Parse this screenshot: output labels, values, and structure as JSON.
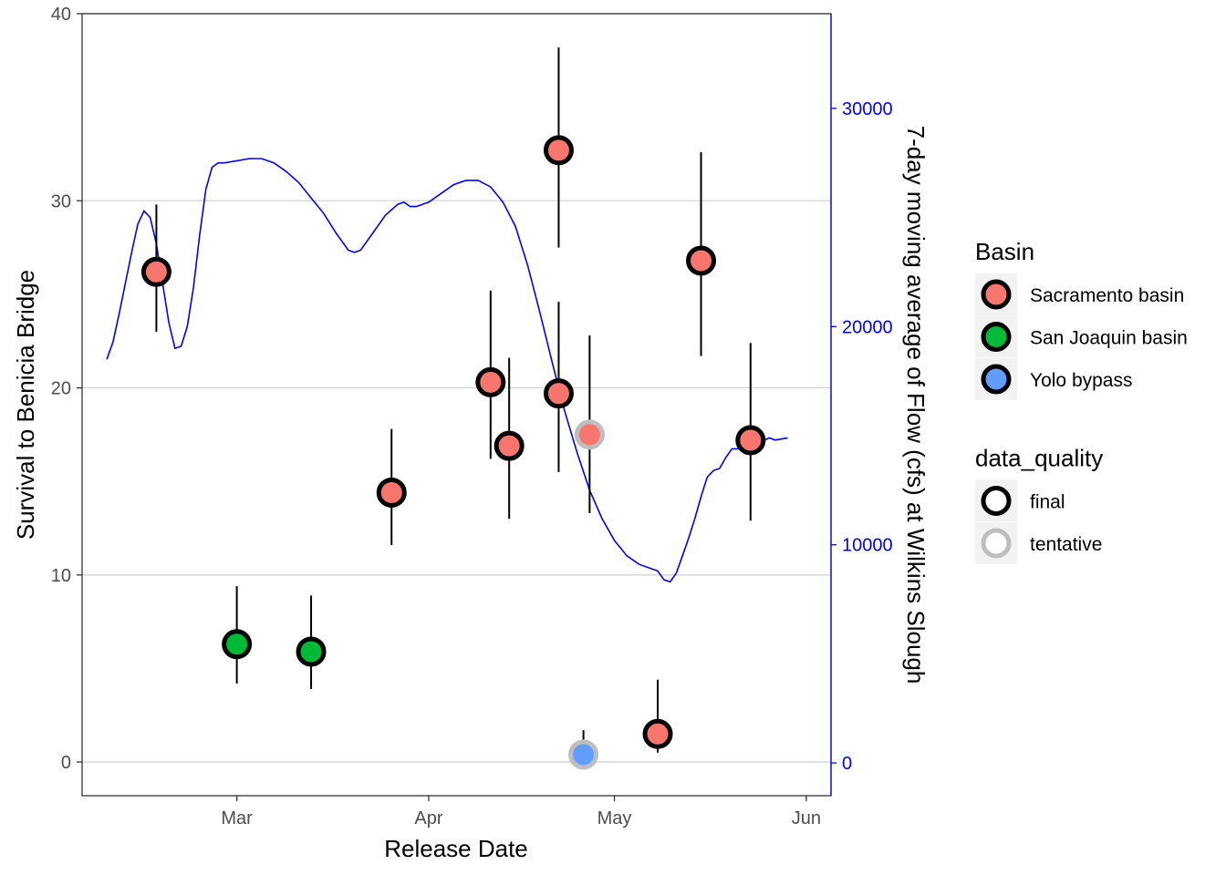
{
  "chart_data": {
    "type": "scatter",
    "xlabel": "Release Date",
    "ylabel": "Survival to Benicia Bridge",
    "y2label": "7-day moving average of Flow (cfs) at Wilkins Slough",
    "x_ticks": [
      {
        "date": "2022-03-01",
        "label": "Mar"
      },
      {
        "date": "2022-04-01",
        "label": "Apr"
      },
      {
        "date": "2022-05-01",
        "label": "May"
      },
      {
        "date": "2022-06-01",
        "label": "Jun"
      }
    ],
    "ylim": [
      -1.8,
      40
    ],
    "y_ticks": [
      0,
      10,
      20,
      30,
      40
    ],
    "y2lim": [
      -1500,
      34340
    ],
    "y2_ticks": [
      0,
      10000,
      20000,
      30000
    ],
    "xlim": [
      "2022-02-04",
      "2022-06-05"
    ],
    "grid": "horizontal major lines",
    "legend_position": "right",
    "colors": {
      "flow_line": "#0000ff",
      "sacramento": "#f8766d",
      "san_joaquin": "#00ba38",
      "yolo": "#619cff",
      "final_outline": "#000000",
      "tentative_outline": "#bebebe",
      "grid": "#d3d3d3",
      "error_bar": "#000000"
    },
    "legends": [
      {
        "title": "Basin",
        "entries": [
          {
            "label": "Sacramento basin",
            "fill": "#f8766d",
            "stroke": "#000000"
          },
          {
            "label": "San Joaquin basin",
            "fill": "#00ba38",
            "stroke": "#000000"
          },
          {
            "label": "Yolo bypass",
            "fill": "#619cff",
            "stroke": "#000000"
          }
        ]
      },
      {
        "title": "data_quality",
        "entries": [
          {
            "label": "final",
            "fill": "#ffffff",
            "stroke": "#000000"
          },
          {
            "label": "tentative",
            "fill": "#ffffff",
            "stroke": "#bebebe"
          }
        ]
      }
    ],
    "points": [
      {
        "date": "2022-02-16",
        "y": 26.2,
        "ymin": 23.0,
        "ymax": 29.8,
        "basin": "Sacramento basin",
        "data_quality": "final"
      },
      {
        "date": "2022-03-01",
        "y": 6.3,
        "ymin": 4.2,
        "ymax": 9.4,
        "basin": "San Joaquin basin",
        "data_quality": "final"
      },
      {
        "date": "2022-03-13",
        "y": 5.9,
        "ymin": 3.9,
        "ymax": 8.9,
        "basin": "San Joaquin basin",
        "data_quality": "final"
      },
      {
        "date": "2022-03-26",
        "y": 14.4,
        "ymin": 11.6,
        "ymax": 17.8,
        "basin": "Sacramento basin",
        "data_quality": "final"
      },
      {
        "date": "2022-04-11",
        "y": 20.3,
        "ymin": 16.2,
        "ymax": 25.2,
        "basin": "Sacramento basin",
        "data_quality": "final"
      },
      {
        "date": "2022-04-14",
        "y": 16.9,
        "ymin": 13.0,
        "ymax": 21.6,
        "basin": "Sacramento basin",
        "data_quality": "final"
      },
      {
        "date": "2022-04-22",
        "y": 32.7,
        "ymin": 27.5,
        "ymax": 38.2,
        "basin": "Sacramento basin",
        "data_quality": "final"
      },
      {
        "date": "2022-04-22",
        "y": 19.7,
        "ymin": 15.5,
        "ymax": 24.6,
        "basin": "Sacramento basin",
        "data_quality": "final"
      },
      {
        "date": "2022-04-27",
        "y": 17.5,
        "ymin": 13.3,
        "ymax": 22.8,
        "basin": "Sacramento basin",
        "data_quality": "tentative"
      },
      {
        "date": "2022-04-26",
        "y": 0.4,
        "ymin": 0.1,
        "ymax": 1.7,
        "basin": "Yolo bypass",
        "data_quality": "tentative"
      },
      {
        "date": "2022-05-08",
        "y": 1.5,
        "ymin": 0.5,
        "ymax": 4.4,
        "basin": "Sacramento basin",
        "data_quality": "final"
      },
      {
        "date": "2022-05-15",
        "y": 26.8,
        "ymin": 21.7,
        "ymax": 32.6,
        "basin": "Sacramento basin",
        "data_quality": "final"
      },
      {
        "date": "2022-05-23",
        "y": 17.2,
        "ymin": 12.9,
        "ymax": 22.4,
        "basin": "Sacramento basin",
        "data_quality": "final"
      }
    ],
    "flow_series": {
      "name": "7-day moving average of Flow (cfs) at Wilkins Slough",
      "points": [
        [
          "2022-02-08",
          18500
        ],
        [
          "2022-02-09",
          19300
        ],
        [
          "2022-02-10",
          20600
        ],
        [
          "2022-02-11",
          22000
        ],
        [
          "2022-02-12",
          23400
        ],
        [
          "2022-02-13",
          24700
        ],
        [
          "2022-02-14",
          25300
        ],
        [
          "2022-02-15",
          25000
        ],
        [
          "2022-02-16",
          23800
        ],
        [
          "2022-02-17",
          22000
        ],
        [
          "2022-02-18",
          20200
        ],
        [
          "2022-02-19",
          19000
        ],
        [
          "2022-02-20",
          19100
        ],
        [
          "2022-02-21",
          20000
        ],
        [
          "2022-02-22",
          21800
        ],
        [
          "2022-02-23",
          24200
        ],
        [
          "2022-02-24",
          26300
        ],
        [
          "2022-02-25",
          27300
        ],
        [
          "2022-02-26",
          27500
        ],
        [
          "2022-02-27",
          27500
        ],
        [
          "2022-03-01",
          27600
        ],
        [
          "2022-03-03",
          27700
        ],
        [
          "2022-03-05",
          27700
        ],
        [
          "2022-03-07",
          27500
        ],
        [
          "2022-03-09",
          27100
        ],
        [
          "2022-03-11",
          26600
        ],
        [
          "2022-03-13",
          25900
        ],
        [
          "2022-03-15",
          25200
        ],
        [
          "2022-03-17",
          24300
        ],
        [
          "2022-03-19",
          23500
        ],
        [
          "2022-03-20",
          23400
        ],
        [
          "2022-03-21",
          23500
        ],
        [
          "2022-03-23",
          24300
        ],
        [
          "2022-03-25",
          25100
        ],
        [
          "2022-03-27",
          25600
        ],
        [
          "2022-03-28",
          25700
        ],
        [
          "2022-03-29",
          25500
        ],
        [
          "2022-03-30",
          25500
        ],
        [
          "2022-04-01",
          25700
        ],
        [
          "2022-04-03",
          26100
        ],
        [
          "2022-04-05",
          26500
        ],
        [
          "2022-04-07",
          26700
        ],
        [
          "2022-04-09",
          26700
        ],
        [
          "2022-04-11",
          26400
        ],
        [
          "2022-04-13",
          25700
        ],
        [
          "2022-04-15",
          24600
        ],
        [
          "2022-04-17",
          22800
        ],
        [
          "2022-04-19",
          20600
        ],
        [
          "2022-04-21",
          18300
        ],
        [
          "2022-04-23",
          16100
        ],
        [
          "2022-04-25",
          14200
        ],
        [
          "2022-04-27",
          12500
        ],
        [
          "2022-04-29",
          11200
        ],
        [
          "2022-05-01",
          10200
        ],
        [
          "2022-05-03",
          9500
        ],
        [
          "2022-05-05",
          9100
        ],
        [
          "2022-05-07",
          8900
        ],
        [
          "2022-05-08",
          8800
        ],
        [
          "2022-05-09",
          8400
        ],
        [
          "2022-05-10",
          8300
        ],
        [
          "2022-05-11",
          8700
        ],
        [
          "2022-05-12",
          9500
        ],
        [
          "2022-05-13",
          10300
        ],
        [
          "2022-05-14",
          11200
        ],
        [
          "2022-05-15",
          12200
        ],
        [
          "2022-05-16",
          13100
        ],
        [
          "2022-05-17",
          13400
        ],
        [
          "2022-05-18",
          13500
        ],
        [
          "2022-05-19",
          14000
        ],
        [
          "2022-05-20",
          14400
        ],
        [
          "2022-05-21",
          14400
        ],
        [
          "2022-05-22",
          14700
        ],
        [
          "2022-05-24",
          14600
        ],
        [
          "2022-05-26",
          14900
        ],
        [
          "2022-05-27",
          14800
        ],
        [
          "2022-05-29",
          14900
        ]
      ]
    }
  }
}
